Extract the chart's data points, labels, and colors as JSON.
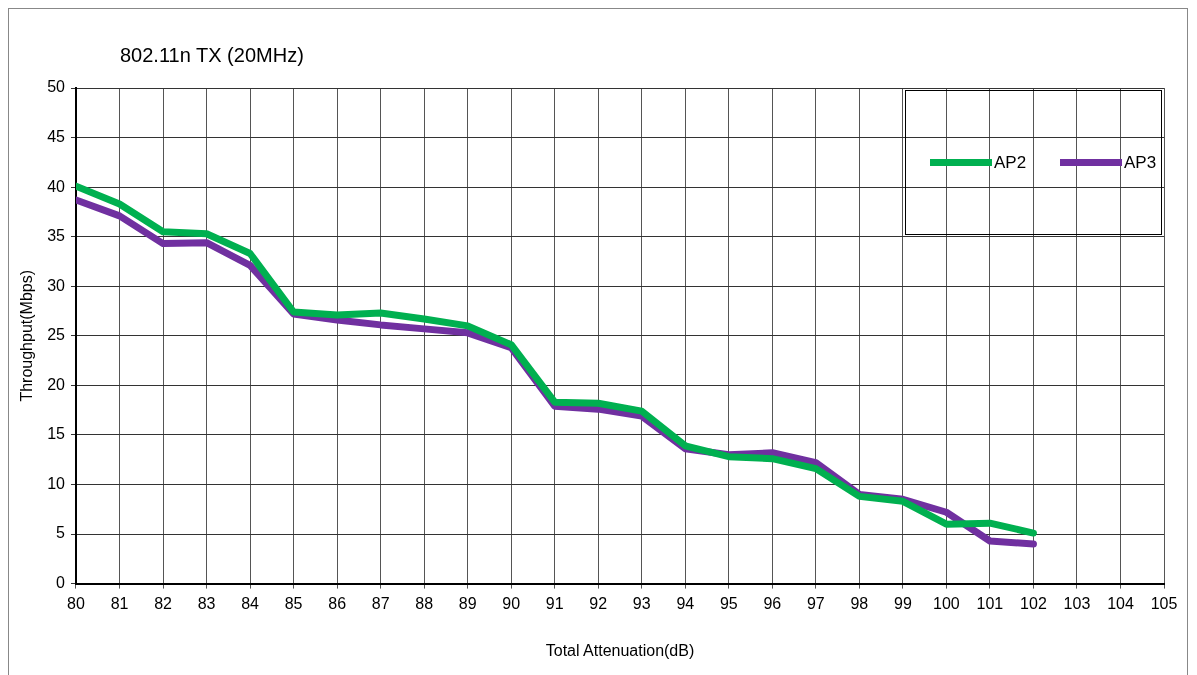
{
  "chart_data": {
    "type": "line",
    "title": "802.11n TX (20MHz)",
    "xlabel": "Total Attenuation(dB)",
    "ylabel": "Throughput(Mbps)",
    "x": [
      80,
      81,
      82,
      83,
      84,
      85,
      86,
      87,
      88,
      89,
      90,
      91,
      92,
      93,
      94,
      95,
      96,
      97,
      98,
      99,
      100,
      101,
      102
    ],
    "series": [
      {
        "name": "AP2",
        "color": "#00b050",
        "values": [
          40.1,
          38.3,
          35.5,
          35.3,
          33.3,
          27.4,
          27.1,
          27.3,
          26.7,
          26.0,
          24.1,
          18.3,
          18.2,
          17.4,
          13.9,
          12.8,
          12.6,
          11.6,
          8.8,
          8.3,
          6.0,
          6.1,
          5.1
        ]
      },
      {
        "name": "AP3",
        "color": "#7030a0",
        "values": [
          38.7,
          37.1,
          34.3,
          34.4,
          32.1,
          27.2,
          26.6,
          26.1,
          25.7,
          25.3,
          23.8,
          17.9,
          17.6,
          16.9,
          13.6,
          13.0,
          13.2,
          12.2,
          9.0,
          8.5,
          7.2,
          4.3,
          4.0
        ]
      }
    ],
    "xlim": [
      80,
      105
    ],
    "xticks": [
      80,
      81,
      82,
      83,
      84,
      85,
      86,
      87,
      88,
      89,
      90,
      91,
      92,
      93,
      94,
      95,
      96,
      97,
      98,
      99,
      100,
      101,
      102,
      103,
      104,
      105
    ],
    "ylim": [
      0,
      50
    ],
    "yticks": [
      0,
      5,
      10,
      15,
      20,
      25,
      30,
      35,
      40,
      45,
      50
    ],
    "grid": true,
    "legend": "top right",
    "marker": "none",
    "line_style": "solid"
  }
}
